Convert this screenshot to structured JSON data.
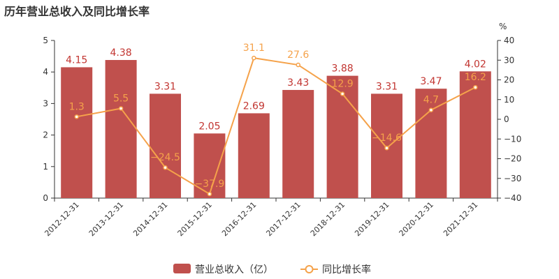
{
  "chart_data": {
    "type": "bar",
    "title": "历年营业总收入及同比增长率",
    "categories": [
      "2012-12-31",
      "2013-12-31",
      "2014-12-31",
      "2015-12-31",
      "2016-12-31",
      "2017-12-31",
      "2018-12-31",
      "2019-12-31",
      "2020-12-31",
      "2021-12-31"
    ],
    "series": [
      {
        "name": "营业总收入（亿）",
        "type": "bar",
        "axis": "left",
        "color": "#c0504d",
        "values": [
          4.15,
          4.38,
          3.31,
          2.05,
          2.69,
          3.43,
          3.88,
          3.31,
          3.47,
          4.02
        ],
        "labels": [
          "4.15",
          "4.38",
          "3.31",
          "2.05",
          "2.69",
          "3.43",
          "3.88",
          "3.31",
          "3.47",
          "4.02"
        ]
      },
      {
        "name": "同比增长率",
        "type": "line",
        "axis": "right",
        "color": "#f5a24a",
        "values": [
          1.3,
          5.5,
          -24.5,
          -37.9,
          31.1,
          27.6,
          12.9,
          -14.6,
          4.7,
          16.2
        ],
        "labels": [
          "1.3",
          "5.5",
          "−24.5",
          "−37.9",
          "31.1",
          "27.6",
          "12.9",
          "−14.6",
          "4.7",
          "16.2"
        ]
      }
    ],
    "ylim_left": [
      0,
      5
    ],
    "yticks_left": [
      "0",
      "1",
      "2",
      "3",
      "4",
      "5"
    ],
    "ylim_right": [
      -40,
      40
    ],
    "yticks_right": [
      "−40",
      "−30",
      "−20",
      "−10",
      "0",
      "10",
      "20",
      "30",
      "40"
    ],
    "ylabel_right": "%",
    "grid": false,
    "legend_position": "bottom-center"
  }
}
